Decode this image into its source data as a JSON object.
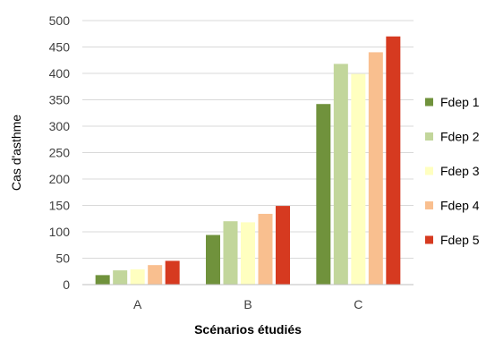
{
  "chart_data": {
    "type": "bar",
    "title": "",
    "xlabel": "Scénarios étudiés",
    "ylabel": "Cas d'asthme",
    "categories": [
      "A",
      "B",
      "C"
    ],
    "ylim": [
      0,
      500
    ],
    "yticks": [
      "0",
      "50",
      "100",
      "150",
      "200",
      "250",
      "300",
      "350",
      "400",
      "450",
      "500"
    ],
    "grid": true,
    "legend_position": "right",
    "series": [
      {
        "name": "Fdep 1",
        "color": "#70923c",
        "values": [
          18,
          94,
          342
        ]
      },
      {
        "name": "Fdep 2",
        "color": "#c2d69b",
        "values": [
          27,
          120,
          418
        ]
      },
      {
        "name": "Fdep 3",
        "color": "#ffffc0",
        "values": [
          29,
          118,
          399
        ]
      },
      {
        "name": "Fdep 4",
        "color": "#f9bf8f",
        "values": [
          37,
          134,
          440
        ]
      },
      {
        "name": "Fdep 5",
        "color": "#d63a20",
        "values": [
          45,
          149,
          470
        ]
      }
    ]
  }
}
